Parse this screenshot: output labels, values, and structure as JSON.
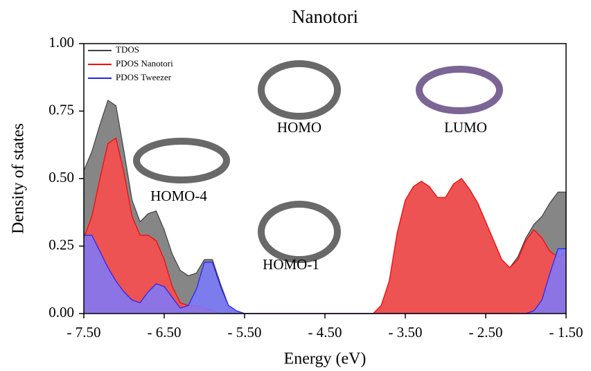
{
  "chart_data": {
    "type": "area",
    "title": "Nanotori",
    "xlabel": "Energy (eV)",
    "ylabel": "Density of states",
    "xlim": [
      -7.5,
      -1.5
    ],
    "ylim": [
      0,
      1
    ],
    "xticks": [
      {
        "value": -7.5,
        "label": "- 7.50"
      },
      {
        "value": -6.5,
        "label": "- 6.50"
      },
      {
        "value": -5.5,
        "label": "- 5.50"
      },
      {
        "value": -4.5,
        "label": "- 4.50"
      },
      {
        "value": -3.5,
        "label": "- 3.50"
      },
      {
        "value": -2.5,
        "label": "- 2.50"
      },
      {
        "value": -1.5,
        "label": "- 1.50"
      }
    ],
    "yticks": [
      {
        "value": 0,
        "label": "0.00"
      },
      0.25,
      {
        "value": 0.5,
        "label": "0.50"
      },
      0.75,
      {
        "value": 1,
        "label": "1.00"
      }
    ],
    "legend": "top-left",
    "annotations": [
      "HOMO-4",
      "HOMO",
      "LUMO",
      "HOMO-1"
    ],
    "x": [
      -7.5,
      -7.4,
      -7.3,
      -7.2,
      -7.1,
      -7.0,
      -6.9,
      -6.8,
      -6.7,
      -6.6,
      -6.5,
      -6.4,
      -6.3,
      -6.2,
      -6.1,
      -6.0,
      -5.9,
      -5.8,
      -5.7,
      -5.6,
      -5.5,
      -5.4,
      -5.3,
      -5.2,
      -5.1,
      -5.0,
      -4.9,
      -4.8,
      -4.7,
      -4.6,
      -4.5,
      -4.4,
      -4.3,
      -4.2,
      -4.1,
      -4.0,
      -3.9,
      -3.8,
      -3.7,
      -3.6,
      -3.5,
      -3.4,
      -3.3,
      -3.2,
      -3.1,
      -3.0,
      -2.9,
      -2.8,
      -2.7,
      -2.6,
      -2.5,
      -2.4,
      -2.3,
      -2.2,
      -2.1,
      -2.0,
      -1.9,
      -1.8,
      -1.7,
      -1.6,
      -1.5
    ],
    "series": [
      {
        "name": "TDOS",
        "color": "#7f7f7f",
        "line": "#404040",
        "values": [
          0.53,
          0.6,
          0.7,
          0.79,
          0.77,
          0.6,
          0.42,
          0.34,
          0.37,
          0.38,
          0.31,
          0.22,
          0.16,
          0.14,
          0.15,
          0.2,
          0.2,
          0.11,
          0.03,
          0.01,
          0,
          0,
          0,
          0,
          0,
          0,
          0,
          0,
          0,
          0,
          0,
          0,
          0,
          0,
          0,
          0,
          0,
          0.03,
          0.12,
          0.3,
          0.42,
          0.47,
          0.49,
          0.47,
          0.43,
          0.43,
          0.48,
          0.5,
          0.46,
          0.41,
          0.34,
          0.27,
          0.2,
          0.17,
          0.21,
          0.28,
          0.33,
          0.36,
          0.41,
          0.45,
          0.45
        ]
      },
      {
        "name": "PDOS Nanotori",
        "color": "#ff4a4a",
        "line": "#ff0000",
        "values": [
          0.28,
          0.36,
          0.5,
          0.63,
          0.65,
          0.52,
          0.36,
          0.29,
          0.29,
          0.27,
          0.2,
          0.1,
          0.04,
          0.03,
          0.03,
          0.02,
          0.01,
          0,
          0,
          0,
          0,
          0,
          0,
          0,
          0,
          0,
          0,
          0,
          0,
          0,
          0,
          0,
          0,
          0,
          0,
          0,
          0,
          0.03,
          0.12,
          0.3,
          0.42,
          0.47,
          0.49,
          0.47,
          0.43,
          0.43,
          0.48,
          0.5,
          0.46,
          0.41,
          0.34,
          0.27,
          0.2,
          0.17,
          0.2,
          0.27,
          0.31,
          0.28,
          0.23,
          0.21,
          0.22
        ]
      },
      {
        "name": "PDOS Tweezer",
        "color": "#7a7aff",
        "line": "#2020ff",
        "values": [
          0.29,
          0.29,
          0.23,
          0.17,
          0.12,
          0.08,
          0.05,
          0.04,
          0.08,
          0.11,
          0.1,
          0.06,
          0.02,
          0.03,
          0.09,
          0.19,
          0.19,
          0.1,
          0.03,
          0.01,
          0,
          0,
          0,
          0,
          0,
          0,
          0,
          0,
          0,
          0,
          0,
          0,
          0,
          0,
          0,
          0,
          0,
          0,
          0,
          0,
          0,
          0,
          0,
          0,
          0,
          0,
          0,
          0,
          0,
          0,
          0,
          0,
          0,
          0,
          0,
          0,
          0.01,
          0.05,
          0.15,
          0.24,
          0.24
        ]
      }
    ]
  }
}
